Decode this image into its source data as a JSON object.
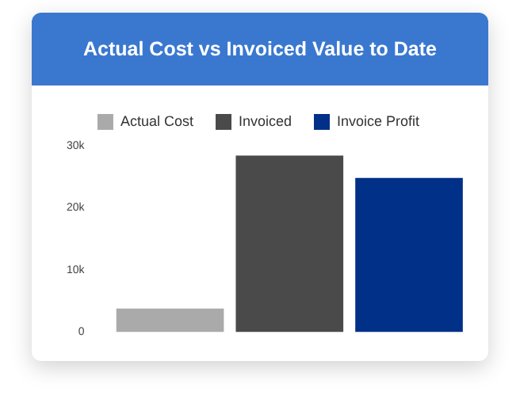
{
  "chart_data": {
    "type": "bar",
    "title": "Actual Cost vs Invoiced Value to Date",
    "categories": [
      null
    ],
    "series": [
      {
        "name": "Actual Cost",
        "color": "#aaaaaa",
        "values": [
          3800
        ]
      },
      {
        "name": "Invoiced",
        "color": "#4a4a4a",
        "values": [
          28400
        ]
      },
      {
        "name": "Invoice Profit",
        "color": "#003087",
        "values": [
          24800
        ]
      }
    ],
    "ylim": [
      0,
      30000
    ],
    "yticks": [
      {
        "value": 0,
        "label": "0"
      },
      {
        "value": 10000,
        "label": "10k"
      },
      {
        "value": 20000,
        "label": "20k"
      },
      {
        "value": 30000,
        "label": "30k"
      }
    ],
    "grid": false,
    "legend": "top"
  }
}
